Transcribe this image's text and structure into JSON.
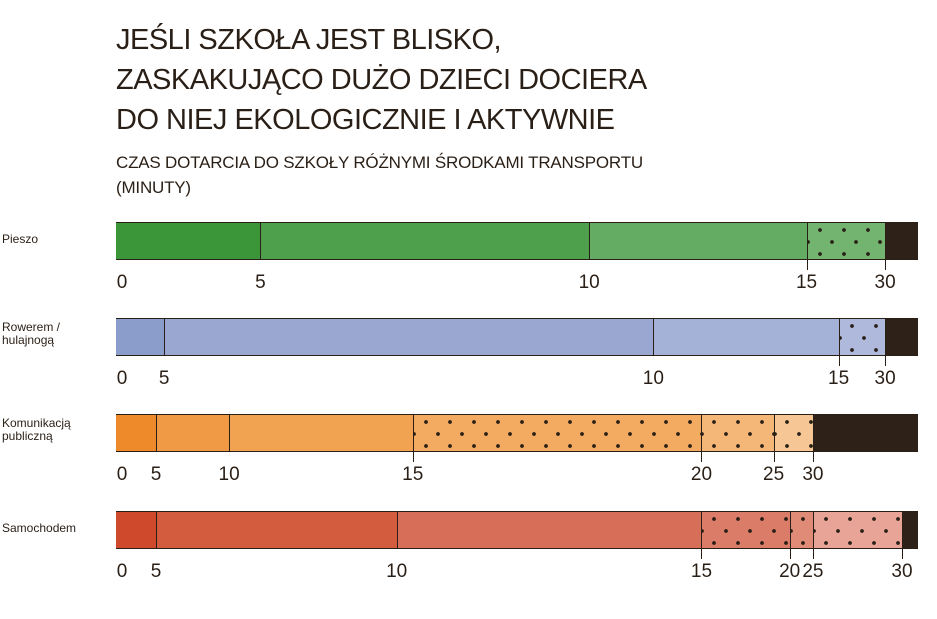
{
  "chart_data": {
    "type": "bar",
    "stacked": true,
    "orientation": "horizontal",
    "title": [
      "JEŚLI SZKOŁA JEST BLISKO,",
      "ZASKAKUJĄCO DUŻO DZIECI DOCIERA",
      "DO NIEJ EKOLOGICZNIE I AKTYWNIE"
    ],
    "subtitle": [
      "CZAS DOTARCIA DO SZKOŁY RÓŻNYMI ŚRODKAMI TRANSPORTU",
      "(MINUTY)"
    ],
    "unit": "percent share of bar (estimated)",
    "rows": [
      {
        "label": [
          "Pieszo"
        ],
        "ticks": [
          "0",
          "5",
          "10",
          "15",
          "30"
        ],
        "segments": [
          {
            "range": "0-5",
            "share": 18.0,
            "color": "#3a9639",
            "dotted": false
          },
          {
            "range": "5-10",
            "share": 41.0,
            "color": "#4fa04c",
            "dotted": false
          },
          {
            "range": "10-15",
            "share": 27.1,
            "color": "#64ab63",
            "dotted": false
          },
          {
            "range": "15-30",
            "share": 9.8,
            "color": "#72b470",
            "dotted": true
          },
          {
            "range": ">30",
            "share": 4.1,
            "color": "#2e2118",
            "dotted": false
          }
        ]
      },
      {
        "label": [
          "Rowerem /",
          "hulajnogą"
        ],
        "ticks": [
          "0",
          "5",
          "10",
          "15",
          "30"
        ],
        "segments": [
          {
            "range": "0-5",
            "share": 6.0,
            "color": "#8b9dcb",
            "dotted": false
          },
          {
            "range": "5-10",
            "share": 61.0,
            "color": "#9aa8d1",
            "dotted": false
          },
          {
            "range": "10-15",
            "share": 23.1,
            "color": "#a5b2d8",
            "dotted": false
          },
          {
            "range": "15-30",
            "share": 5.8,
            "color": "#aeb9dc",
            "dotted": true
          },
          {
            "range": ">30",
            "share": 4.1,
            "color": "#2e2118",
            "dotted": false
          }
        ]
      },
      {
        "label": [
          "Komunikacją",
          "publiczną"
        ],
        "ticks": [
          "0",
          "5",
          "10",
          "15",
          "20",
          "25",
          "30"
        ],
        "segments": [
          {
            "range": "0-5",
            "share": 5.0,
            "color": "#ee8a2a",
            "dotted": false
          },
          {
            "range": "5-10",
            "share": 9.1,
            "color": "#f09a45",
            "dotted": false
          },
          {
            "range": "10-15",
            "share": 22.9,
            "color": "#f1a352",
            "dotted": false
          },
          {
            "range": "15-20",
            "share": 36.0,
            "color": "#f2ab60",
            "dotted": true
          },
          {
            "range": "20-25",
            "share": 9.0,
            "color": "#f4b777",
            "dotted": true
          },
          {
            "range": "25-30",
            "share": 4.9,
            "color": "#f6c795",
            "dotted": true
          },
          {
            "range": ">30",
            "share": 13.1,
            "color": "#2e2118",
            "dotted": false
          }
        ]
      },
      {
        "label": [
          "Samochodem"
        ],
        "ticks": [
          "0",
          "5",
          "10",
          "15",
          "20",
          "25",
          "30"
        ],
        "segments": [
          {
            "range": "0-5",
            "share": 5.0,
            "color": "#cf4a2d",
            "dotted": false
          },
          {
            "range": "5-10",
            "share": 30.0,
            "color": "#d35c3f",
            "dotted": false
          },
          {
            "range": "10-15",
            "share": 38.0,
            "color": "#d76f58",
            "dotted": false
          },
          {
            "range": "15-20",
            "share": 11.0,
            "color": "#da7c67",
            "dotted": true
          },
          {
            "range": "20-25",
            "share": 2.9,
            "color": "#e08b78",
            "dotted": true
          },
          {
            "range": "25-30",
            "share": 11.1,
            "color": "#e8a597",
            "dotted": true
          },
          {
            "range": ">30",
            "share": 2.0,
            "color": "#2e2118",
            "dotted": false
          }
        ]
      }
    ]
  }
}
